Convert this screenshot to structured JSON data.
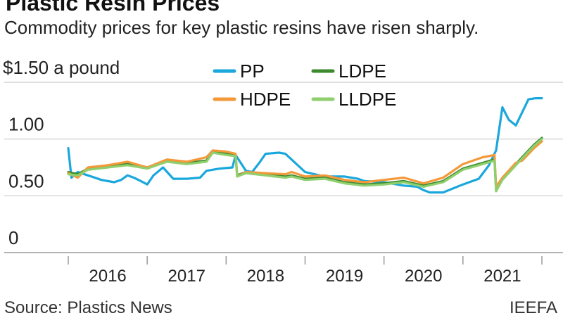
{
  "chart_data": {
    "type": "line",
    "title": "Plastic Resin Prices",
    "subtitle": "Commodity prices for key plastic resins have risen sharply.",
    "ylabel": "$1.50 a pound",
    "ylim": [
      0,
      1.5
    ],
    "yticks": [
      {
        "value": 1.5,
        "label": "$1.50 a pound"
      },
      {
        "value": 1.0,
        "label": "1.00"
      },
      {
        "value": 0.5,
        "label": "0.50"
      },
      {
        "value": 0,
        "label": "0"
      }
    ],
    "xlim": [
      2015.5,
      2021.95
    ],
    "xticks": [
      "2016",
      "2017",
      "2018",
      "2019",
      "2020",
      "2021"
    ],
    "x_unit": "year",
    "grid": true,
    "legend_position": "top-center",
    "series": [
      {
        "name": "PP",
        "color": "#1aa7dc",
        "points": [
          [
            2015.5,
            0.92
          ],
          [
            2015.54,
            0.66
          ],
          [
            2015.62,
            0.71
          ],
          [
            2015.75,
            0.68
          ],
          [
            2015.92,
            0.64
          ],
          [
            2016.08,
            0.62
          ],
          [
            2016.17,
            0.64
          ],
          [
            2016.25,
            0.68
          ],
          [
            2016.33,
            0.66
          ],
          [
            2016.42,
            0.63
          ],
          [
            2016.5,
            0.6
          ],
          [
            2016.58,
            0.68
          ],
          [
            2016.7,
            0.75
          ],
          [
            2016.83,
            0.65
          ],
          [
            2017.0,
            0.65
          ],
          [
            2017.17,
            0.66
          ],
          [
            2017.25,
            0.72
          ],
          [
            2017.42,
            0.74
          ],
          [
            2017.58,
            0.75
          ],
          [
            2017.62,
            0.86
          ],
          [
            2017.75,
            0.72
          ],
          [
            2017.83,
            0.71
          ],
          [
            2017.92,
            0.79
          ],
          [
            2018.0,
            0.87
          ],
          [
            2018.17,
            0.88
          ],
          [
            2018.25,
            0.87
          ],
          [
            2018.5,
            0.71
          ],
          [
            2018.75,
            0.67
          ],
          [
            2019.0,
            0.67
          ],
          [
            2019.17,
            0.65
          ],
          [
            2019.25,
            0.63
          ],
          [
            2019.5,
            0.62
          ],
          [
            2019.75,
            0.59
          ],
          [
            2019.92,
            0.58
          ],
          [
            2020.0,
            0.55
          ],
          [
            2020.08,
            0.53
          ],
          [
            2020.25,
            0.53
          ],
          [
            2020.5,
            0.6
          ],
          [
            2020.7,
            0.65
          ],
          [
            2020.83,
            0.77
          ],
          [
            2020.92,
            0.9
          ],
          [
            2021.0,
            1.28
          ],
          [
            2021.08,
            1.17
          ],
          [
            2021.17,
            1.12
          ],
          [
            2021.33,
            1.35
          ],
          [
            2021.42,
            1.36
          ],
          [
            2021.5,
            1.36
          ]
        ]
      },
      {
        "name": "LDPE",
        "color": "#3d8a2e",
        "points": [
          [
            2015.5,
            0.71
          ],
          [
            2015.62,
            0.69
          ],
          [
            2015.75,
            0.74
          ],
          [
            2016.0,
            0.76
          ],
          [
            2016.25,
            0.78
          ],
          [
            2016.5,
            0.75
          ],
          [
            2016.75,
            0.81
          ],
          [
            2017.0,
            0.79
          ],
          [
            2017.25,
            0.81
          ],
          [
            2017.33,
            0.89
          ],
          [
            2017.5,
            0.87
          ],
          [
            2017.62,
            0.86
          ],
          [
            2017.64,
            0.68
          ],
          [
            2017.75,
            0.71
          ],
          [
            2018.0,
            0.69
          ],
          [
            2018.25,
            0.67
          ],
          [
            2018.33,
            0.68
          ],
          [
            2018.5,
            0.65
          ],
          [
            2018.75,
            0.66
          ],
          [
            2019.0,
            0.62
          ],
          [
            2019.25,
            0.6
          ],
          [
            2019.5,
            0.61
          ],
          [
            2019.75,
            0.63
          ],
          [
            2020.0,
            0.59
          ],
          [
            2020.25,
            0.63
          ],
          [
            2020.5,
            0.74
          ],
          [
            2020.75,
            0.79
          ],
          [
            2020.9,
            0.82
          ],
          [
            2020.92,
            0.55
          ],
          [
            2021.0,
            0.65
          ],
          [
            2021.25,
            0.84
          ],
          [
            2021.4,
            0.95
          ],
          [
            2021.5,
            1.01
          ]
        ]
      },
      {
        "name": "HDPE",
        "color": "#f4983a",
        "points": [
          [
            2015.5,
            0.7
          ],
          [
            2015.62,
            0.66
          ],
          [
            2015.75,
            0.75
          ],
          [
            2016.0,
            0.77
          ],
          [
            2016.25,
            0.8
          ],
          [
            2016.5,
            0.75
          ],
          [
            2016.75,
            0.82
          ],
          [
            2017.0,
            0.8
          ],
          [
            2017.25,
            0.84
          ],
          [
            2017.33,
            0.9
          ],
          [
            2017.5,
            0.89
          ],
          [
            2017.62,
            0.87
          ],
          [
            2017.64,
            0.67
          ],
          [
            2017.75,
            0.71
          ],
          [
            2018.0,
            0.7
          ],
          [
            2018.25,
            0.69
          ],
          [
            2018.33,
            0.71
          ],
          [
            2018.5,
            0.67
          ],
          [
            2018.75,
            0.68
          ],
          [
            2019.0,
            0.64
          ],
          [
            2019.25,
            0.62
          ],
          [
            2019.5,
            0.64
          ],
          [
            2019.75,
            0.66
          ],
          [
            2020.0,
            0.61
          ],
          [
            2020.25,
            0.66
          ],
          [
            2020.5,
            0.78
          ],
          [
            2020.75,
            0.84
          ],
          [
            2020.9,
            0.86
          ],
          [
            2020.92,
            0.58
          ],
          [
            2021.0,
            0.66
          ],
          [
            2021.17,
            0.79
          ],
          [
            2021.25,
            0.81
          ],
          [
            2021.4,
            0.92
          ],
          [
            2021.5,
            0.98
          ]
        ]
      },
      {
        "name": "LLDPE",
        "color": "#8fcf6e",
        "points": [
          [
            2015.5,
            0.69
          ],
          [
            2015.62,
            0.68
          ],
          [
            2015.75,
            0.73
          ],
          [
            2016.0,
            0.75
          ],
          [
            2016.25,
            0.77
          ],
          [
            2016.5,
            0.74
          ],
          [
            2016.75,
            0.8
          ],
          [
            2017.0,
            0.78
          ],
          [
            2017.25,
            0.8
          ],
          [
            2017.33,
            0.88
          ],
          [
            2017.5,
            0.86
          ],
          [
            2017.62,
            0.85
          ],
          [
            2017.64,
            0.67
          ],
          [
            2017.75,
            0.7
          ],
          [
            2018.0,
            0.68
          ],
          [
            2018.25,
            0.66
          ],
          [
            2018.33,
            0.67
          ],
          [
            2018.5,
            0.64
          ],
          [
            2018.75,
            0.65
          ],
          [
            2019.0,
            0.61
          ],
          [
            2019.25,
            0.59
          ],
          [
            2019.5,
            0.6
          ],
          [
            2019.75,
            0.62
          ],
          [
            2020.0,
            0.58
          ],
          [
            2020.25,
            0.62
          ],
          [
            2020.5,
            0.73
          ],
          [
            2020.75,
            0.78
          ],
          [
            2020.9,
            0.81
          ],
          [
            2020.92,
            0.54
          ],
          [
            2021.0,
            0.64
          ],
          [
            2021.25,
            0.83
          ],
          [
            2021.4,
            0.94
          ],
          [
            2021.5,
            1.0
          ]
        ]
      }
    ]
  },
  "footer": {
    "source": "Source: Plastics News",
    "credit": "IEEFA"
  }
}
